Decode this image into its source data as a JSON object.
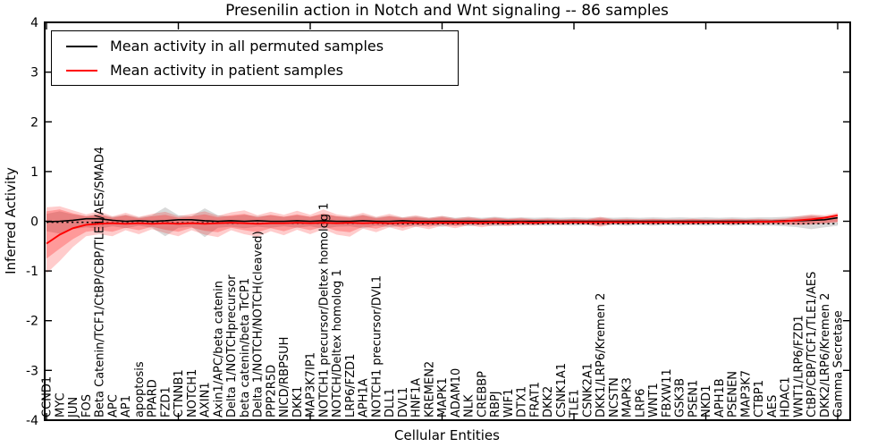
{
  "figure": {
    "background": "#ffffff",
    "accent_black": "#000000",
    "accent_red": "#ff0000"
  },
  "chart_data": {
    "type": "line",
    "title": "Presenilin action in Notch and Wnt signaling -- 86 samples",
    "xlabel": "Cellular Entities",
    "ylabel": "Inferred Activity",
    "ylim": [
      -4,
      4
    ],
    "yticks": [
      4,
      3,
      2,
      1,
      0,
      -1,
      -2,
      -3,
      -4
    ],
    "grid": false,
    "legend_position": "upper left",
    "categories": [
      "CCND1",
      "MYC",
      "JUN",
      "FOS",
      "Beta Catenin/TCF1/CtBP/CBP/TLE1/AES/SMAD4",
      "APC",
      "AP1",
      "apoptosis",
      "PPARD",
      "FZD1",
      "CTNNB1",
      "NOTCH1",
      "AXIN1",
      "Axin1/APC/beta catenin",
      "Delta 1/NOTCHprecursor",
      "beta catenin/beta TrCP1",
      "Delta 1/NOTCH/NOTCH(cleaved)",
      "PPP2R5D",
      "NICD/RBPSUH",
      "DKK1",
      "MAP3K7IP1",
      "NOTCH1 precursor/Deltex homolog 1",
      "NOTCH/Deltex homolog 1",
      "LRP6/FZD1",
      "APH1A",
      "NOTCH1 precursor/DVL1",
      "DLL1",
      "DVL1",
      "HNF1A",
      "KREMEN2",
      "MAPK1",
      "ADAM10",
      "NLK",
      "CREBBP",
      "RBPJ",
      "WIF1",
      "DTX1",
      "FRAT1",
      "DKK2",
      "CSNK1A1",
      "TLE1",
      "CSNK2A1",
      "DKK1/LRP6/Kremen 2",
      "NCSTN",
      "MAPK3",
      "LRP6",
      "WNT1",
      "FBXW11",
      "GSK3B",
      "PSEN1",
      "NKD1",
      "APH1B",
      "PSENEN",
      "MAP3K7",
      "CTBP1",
      "AES",
      "HDAC1",
      "WNT1/LRP6/FZD1",
      "CtBP/CBP/TCF1/TLE1/AES",
      "DKK2/LRP6/Kremen 2",
      "Gamma Secretase"
    ],
    "series": [
      {
        "name": "Mean activity in all permuted samples",
        "color": "#000000",
        "style": "solid",
        "band_color": "#aaaaaa",
        "values": [
          -0.01,
          0.0,
          0.02,
          0.05,
          0.05,
          0.02,
          0.0,
          0.01,
          0.0,
          0.01,
          0.03,
          0.03,
          0.01,
          0.0,
          0.01,
          0.0,
          0.01,
          0.0,
          0.0,
          0.01,
          0.0,
          0.01,
          0.0,
          0.0,
          0.01,
          0.0,
          0.0,
          0.01,
          0.0,
          0.0,
          0.0,
          0.0,
          0.0,
          0.0,
          0.0,
          0.0,
          0.0,
          0.0,
          0.0,
          0.0,
          0.0,
          0.0,
          0.0,
          0.0,
          0.0,
          0.0,
          0.0,
          0.0,
          0.0,
          0.0,
          0.0,
          0.0,
          0.0,
          0.0,
          0.0,
          0.0,
          0.01,
          0.01,
          0.02,
          0.03,
          0.07
        ],
        "band_upper": [
          0.15,
          0.2,
          0.14,
          0.1,
          0.14,
          0.09,
          0.13,
          0.08,
          0.12,
          0.28,
          0.12,
          0.1,
          0.26,
          0.12,
          0.1,
          0.13,
          0.1,
          0.12,
          0.09,
          0.12,
          0.09,
          0.14,
          0.1,
          0.09,
          0.13,
          0.08,
          0.11,
          0.08,
          0.1,
          0.07,
          0.1,
          0.07,
          0.09,
          0.07,
          0.09,
          0.07,
          0.08,
          0.07,
          0.08,
          0.07,
          0.08,
          0.07,
          0.08,
          0.07,
          0.08,
          0.07,
          0.08,
          0.07,
          0.08,
          0.07,
          0.08,
          0.07,
          0.08,
          0.07,
          0.08,
          0.08,
          0.09,
          0.1,
          0.12,
          0.1,
          0.08
        ],
        "band_lower": [
          -0.2,
          -0.25,
          -0.16,
          -0.12,
          -0.15,
          -0.1,
          -0.14,
          -0.09,
          -0.13,
          -0.3,
          -0.13,
          -0.11,
          -0.32,
          -0.13,
          -0.11,
          -0.14,
          -0.11,
          -0.13,
          -0.1,
          -0.13,
          -0.1,
          -0.15,
          -0.11,
          -0.1,
          -0.14,
          -0.09,
          -0.12,
          -0.09,
          -0.11,
          -0.08,
          -0.11,
          -0.08,
          -0.1,
          -0.08,
          -0.1,
          -0.08,
          -0.09,
          -0.08,
          -0.09,
          -0.08,
          -0.09,
          -0.08,
          -0.09,
          -0.08,
          -0.09,
          -0.08,
          -0.09,
          -0.08,
          -0.09,
          -0.08,
          -0.09,
          -0.08,
          -0.09,
          -0.08,
          -0.09,
          -0.09,
          -0.1,
          -0.12,
          -0.16,
          -0.12,
          -0.09
        ]
      },
      {
        "name": "Mean activity in patient samples",
        "color": "#ff0000",
        "style": "solid",
        "band_color": "#ff0000",
        "values": [
          -0.45,
          -0.27,
          -0.14,
          -0.07,
          -0.05,
          -0.04,
          -0.05,
          -0.04,
          -0.05,
          -0.04,
          -0.05,
          -0.04,
          -0.05,
          -0.04,
          -0.03,
          -0.04,
          -0.05,
          -0.04,
          -0.04,
          -0.03,
          -0.04,
          -0.03,
          -0.04,
          -0.03,
          -0.04,
          -0.03,
          -0.04,
          -0.03,
          -0.03,
          -0.03,
          -0.03,
          -0.03,
          -0.03,
          -0.03,
          -0.02,
          -0.03,
          -0.02,
          -0.03,
          -0.02,
          -0.02,
          -0.02,
          -0.02,
          -0.02,
          -0.02,
          -0.02,
          -0.02,
          -0.02,
          -0.02,
          -0.02,
          -0.02,
          -0.02,
          -0.02,
          -0.02,
          -0.02,
          -0.01,
          -0.01,
          0.0,
          0.02,
          0.04,
          0.07,
          0.12
        ],
        "band_upper": [
          0.28,
          0.3,
          0.22,
          0.14,
          0.2,
          0.1,
          0.17,
          0.09,
          0.15,
          0.19,
          0.1,
          0.15,
          0.2,
          0.11,
          0.18,
          0.22,
          0.12,
          0.19,
          0.13,
          0.21,
          0.13,
          0.24,
          0.14,
          0.1,
          0.17,
          0.09,
          0.15,
          0.08,
          0.12,
          0.07,
          0.11,
          0.06,
          0.09,
          0.05,
          0.08,
          0.05,
          0.07,
          0.04,
          0.06,
          0.04,
          0.05,
          0.04,
          0.09,
          0.04,
          0.05,
          0.04,
          0.05,
          0.04,
          0.04,
          0.05,
          0.04,
          0.04,
          0.05,
          0.04,
          0.05,
          0.04,
          0.06,
          0.1,
          0.14,
          0.12,
          0.17
        ],
        "band_lower": [
          -1.05,
          -0.8,
          -0.52,
          -0.3,
          -0.26,
          -0.3,
          -0.18,
          -0.26,
          -0.16,
          -0.24,
          -0.3,
          -0.18,
          -0.27,
          -0.32,
          -0.18,
          -0.26,
          -0.31,
          -0.2,
          -0.28,
          -0.17,
          -0.26,
          -0.16,
          -0.27,
          -0.31,
          -0.15,
          -0.22,
          -0.12,
          -0.19,
          -0.11,
          -0.16,
          -0.09,
          -0.14,
          -0.08,
          -0.12,
          -0.08,
          -0.1,
          -0.07,
          -0.09,
          -0.06,
          -0.08,
          -0.06,
          -0.07,
          -0.11,
          -0.06,
          -0.07,
          -0.06,
          -0.07,
          -0.06,
          -0.06,
          -0.07,
          -0.06,
          -0.06,
          -0.07,
          -0.06,
          -0.07,
          -0.06,
          -0.07,
          -0.08,
          -0.07,
          -0.05,
          -0.02
        ],
        "band_inner_upper": [
          0.2,
          0.24,
          0.16,
          0.1,
          0.14,
          0.07,
          0.12,
          0.06,
          0.1,
          0.13,
          0.07,
          0.1,
          0.14,
          0.08,
          0.12,
          0.15,
          0.08,
          0.13,
          0.09,
          0.14,
          0.09,
          0.16,
          0.1,
          0.07,
          0.12,
          0.06,
          0.1,
          0.06,
          0.08,
          0.05,
          0.08,
          0.04,
          0.06,
          0.04,
          0.06,
          0.04,
          0.05,
          0.03,
          0.04,
          0.03,
          0.04,
          0.03,
          0.06,
          0.03,
          0.04,
          0.03,
          0.04,
          0.03,
          0.03,
          0.04,
          0.03,
          0.03,
          0.04,
          0.03,
          0.04,
          0.03,
          0.04,
          0.07,
          0.1,
          0.08,
          0.12
        ],
        "band_inner_lower": [
          -0.75,
          -0.55,
          -0.36,
          -0.21,
          -0.18,
          -0.21,
          -0.13,
          -0.18,
          -0.11,
          -0.17,
          -0.21,
          -0.13,
          -0.19,
          -0.22,
          -0.13,
          -0.18,
          -0.22,
          -0.14,
          -0.2,
          -0.12,
          -0.18,
          -0.11,
          -0.19,
          -0.22,
          -0.11,
          -0.15,
          -0.08,
          -0.13,
          -0.08,
          -0.11,
          -0.06,
          -0.1,
          -0.06,
          -0.08,
          -0.06,
          -0.07,
          -0.05,
          -0.06,
          -0.04,
          -0.06,
          -0.04,
          -0.05,
          -0.08,
          -0.04,
          -0.05,
          -0.04,
          -0.05,
          -0.04,
          -0.04,
          -0.05,
          -0.04,
          -0.04,
          -0.05,
          -0.04,
          -0.05,
          -0.04,
          -0.05,
          -0.06,
          -0.05,
          -0.03,
          -0.01
        ]
      }
    ],
    "dotted_line": {
      "name": "permuted dotted reference",
      "color": "#000000",
      "style": "dotted",
      "values": [
        -0.02,
        -0.02,
        -0.02,
        -0.02,
        -0.03,
        -0.03,
        -0.03,
        -0.03,
        -0.03,
        -0.03,
        -0.03,
        -0.03,
        -0.03,
        -0.03,
        -0.04,
        -0.04,
        -0.04,
        -0.04,
        -0.04,
        -0.04,
        -0.04,
        -0.04,
        -0.04,
        -0.04,
        -0.04,
        -0.04,
        -0.05,
        -0.05,
        -0.05,
        -0.05,
        -0.05,
        -0.05,
        -0.05,
        -0.05,
        -0.05,
        -0.05,
        -0.05,
        -0.05,
        -0.05,
        -0.05,
        -0.05,
        -0.05,
        -0.05,
        -0.05,
        -0.05,
        -0.05,
        -0.05,
        -0.05,
        -0.05,
        -0.05,
        -0.05,
        -0.05,
        -0.05,
        -0.05,
        -0.05,
        -0.05,
        -0.05,
        -0.05,
        -0.05,
        -0.05,
        -0.05
      ]
    }
  }
}
